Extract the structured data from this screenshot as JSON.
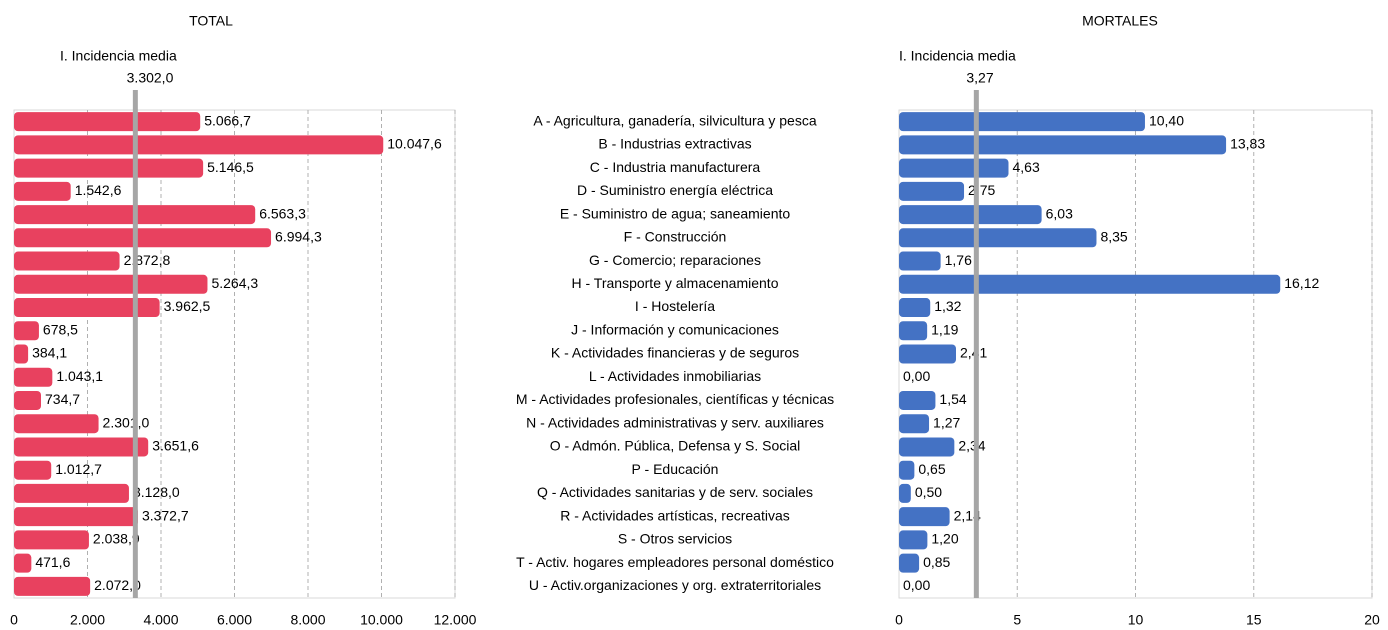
{
  "chart_data": [
    {
      "type": "hbar",
      "title": "TOTAL",
      "categories": [
        "A - Agricultura, ganadería, silvicultura y pesca",
        "B - Industrias extractivas",
        "C - Industria manufacturera",
        "D - Suministro energía eléctrica",
        "E - Suministro de agua; saneamiento",
        "F - Construcción",
        "G - Comercio; reparaciones",
        "H - Transporte y almacenamiento",
        "I - Hostelería",
        "J - Información y comunicaciones",
        "K - Actividades financieras y de seguros",
        "L - Actividades inmobiliarias",
        "M - Actividades profesionales, científicas y técnicas",
        "N - Actividades administrativas y serv. auxiliares",
        "O - Admón. Pública, Defensa y S. Social",
        "P - Educación",
        "Q - Actividades sanitarias y de serv. sociales",
        "R - Actividades artísticas, recreativas",
        "S - Otros servicios",
        "T - Activ. hogares empleadores personal doméstico",
        "U - Activ.organizaciones y org. extraterritoriales"
      ],
      "values": [
        5066.7,
        10047.6,
        5146.5,
        1542.6,
        6563.3,
        6994.3,
        2872.8,
        5264.3,
        3962.5,
        678.5,
        384.1,
        1043.1,
        734.7,
        2301.0,
        3651.6,
        1012.7,
        3128.0,
        3372.7,
        2038.9,
        471.6,
        2072.0
      ],
      "value_labels": [
        "5.066,7",
        "10.047,6",
        "5.146,5",
        "1.542,6",
        "6.563,3",
        "6.994,3",
        "2.872,8",
        "5.264,3",
        "3.962,5",
        "678,5",
        "384,1",
        "1.043,1",
        "734,7",
        "2.301,0",
        "3.651,6",
        "1.012,7",
        "3.128,0",
        "3.372,7",
        "2.038,9",
        "471,6",
        "2.072,0"
      ],
      "color": "#e8415f",
      "xlim": [
        0,
        12000
      ],
      "xticks": [
        0,
        {
          "value": 2000,
          "label": "2.000"
        },
        {
          "value": 4000,
          "label": "4.000"
        },
        {
          "value": 6000,
          "label": "6.000"
        },
        {
          "value": 8000,
          "label": "8.000"
        },
        {
          "value": 10000,
          "label": "10.000"
        },
        {
          "value": 12000,
          "label": "12.000"
        }
      ],
      "grid": true,
      "reference": {
        "label": "I. Incidencia media",
        "value": 3302.0,
        "value_label": "3.302,0"
      }
    },
    {
      "type": "hbar",
      "title": "MORTALES",
      "values": [
        10.4,
        13.83,
        4.63,
        2.75,
        6.03,
        8.35,
        1.76,
        16.12,
        1.32,
        1.19,
        2.41,
        0.0,
        1.54,
        1.27,
        2.34,
        0.65,
        0.5,
        2.14,
        1.2,
        0.85,
        0.0
      ],
      "value_labels": [
        "10,40",
        "13,83",
        "4,63",
        "2,75",
        "6,03",
        "8,35",
        "1,76",
        "16,12",
        "1,32",
        "1,19",
        "2,41",
        "0,00",
        "1,54",
        "1,27",
        "2,34",
        "0,65",
        "0,50",
        "2,14",
        "1,20",
        "0,85",
        "0,00"
      ],
      "color": "#4472c4",
      "xlim": [
        0,
        20
      ],
      "xticks": [
        0,
        5,
        10,
        15,
        20
      ],
      "grid": true,
      "reference": {
        "label": "I. Incidencia media",
        "value": 3.27,
        "value_label": "3,27"
      }
    }
  ]
}
